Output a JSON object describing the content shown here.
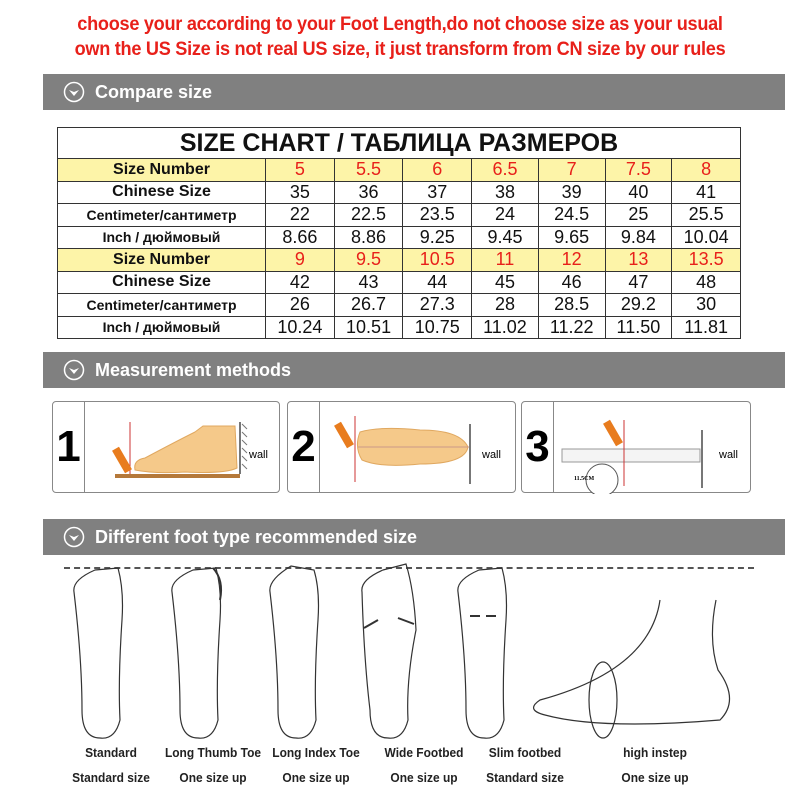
{
  "notice": {
    "line1": "choose your according to your Foot Length,do not choose size as your usual",
    "line2": "own the US Size is not real US size, it just transform from CN size by our rules"
  },
  "sections": {
    "compare": "Compare size",
    "measurement": "Measurement methods",
    "foot_type": "Different foot type recommended size"
  },
  "size_chart": {
    "title": "SIZE CHART / ТАБЛИЦА РАЗМЕРОВ",
    "labels": {
      "size_number": "Size Number",
      "chinese_size": "Chinese Size",
      "centimeter": "Centimeter/сантиметр",
      "inch": "Inch / дюймовый"
    },
    "blocks": [
      {
        "size_number": [
          "5",
          "5.5",
          "6",
          "6.5",
          "7",
          "7.5",
          "8"
        ],
        "chinese_size": [
          "35",
          "36",
          "37",
          "38",
          "39",
          "40",
          "41"
        ],
        "centimeter": [
          "22",
          "22.5",
          "23.5",
          "24",
          "24.5",
          "25",
          "25.5"
        ],
        "inch": [
          "8.66",
          "8.86",
          "9.25",
          "9.45",
          "9.65",
          "9.84",
          "10.04"
        ]
      },
      {
        "size_number": [
          "9",
          "9.5",
          "10.5",
          "11",
          "12",
          "13",
          "13.5"
        ],
        "chinese_size": [
          "42",
          "43",
          "44",
          "45",
          "46",
          "47",
          "48"
        ],
        "centimeter": [
          "26",
          "26.7",
          "27.3",
          "28",
          "28.5",
          "29.2",
          "30"
        ],
        "inch": [
          "10.24",
          "10.51",
          "10.75",
          "11.02",
          "11.22",
          "11.50",
          "11.81"
        ]
      }
    ],
    "highlight_color": "#fdf4a8",
    "size_color": "#e8201a"
  },
  "measurement": {
    "steps": [
      "1",
      "2",
      "3"
    ],
    "wall_label": "wall",
    "ruler_reading": "11.5CM"
  },
  "foot_types": [
    {
      "name": "Standard",
      "advice": "Standard size"
    },
    {
      "name": "Long Thumb Toe",
      "advice": "One size up"
    },
    {
      "name": "Long Index Toe",
      "advice": "One size up"
    },
    {
      "name": "Wide Footbed",
      "advice": "One size up"
    },
    {
      "name": "Slim footbed",
      "advice": "Standard size"
    },
    {
      "name": "high instep",
      "advice": "One size up"
    }
  ]
}
